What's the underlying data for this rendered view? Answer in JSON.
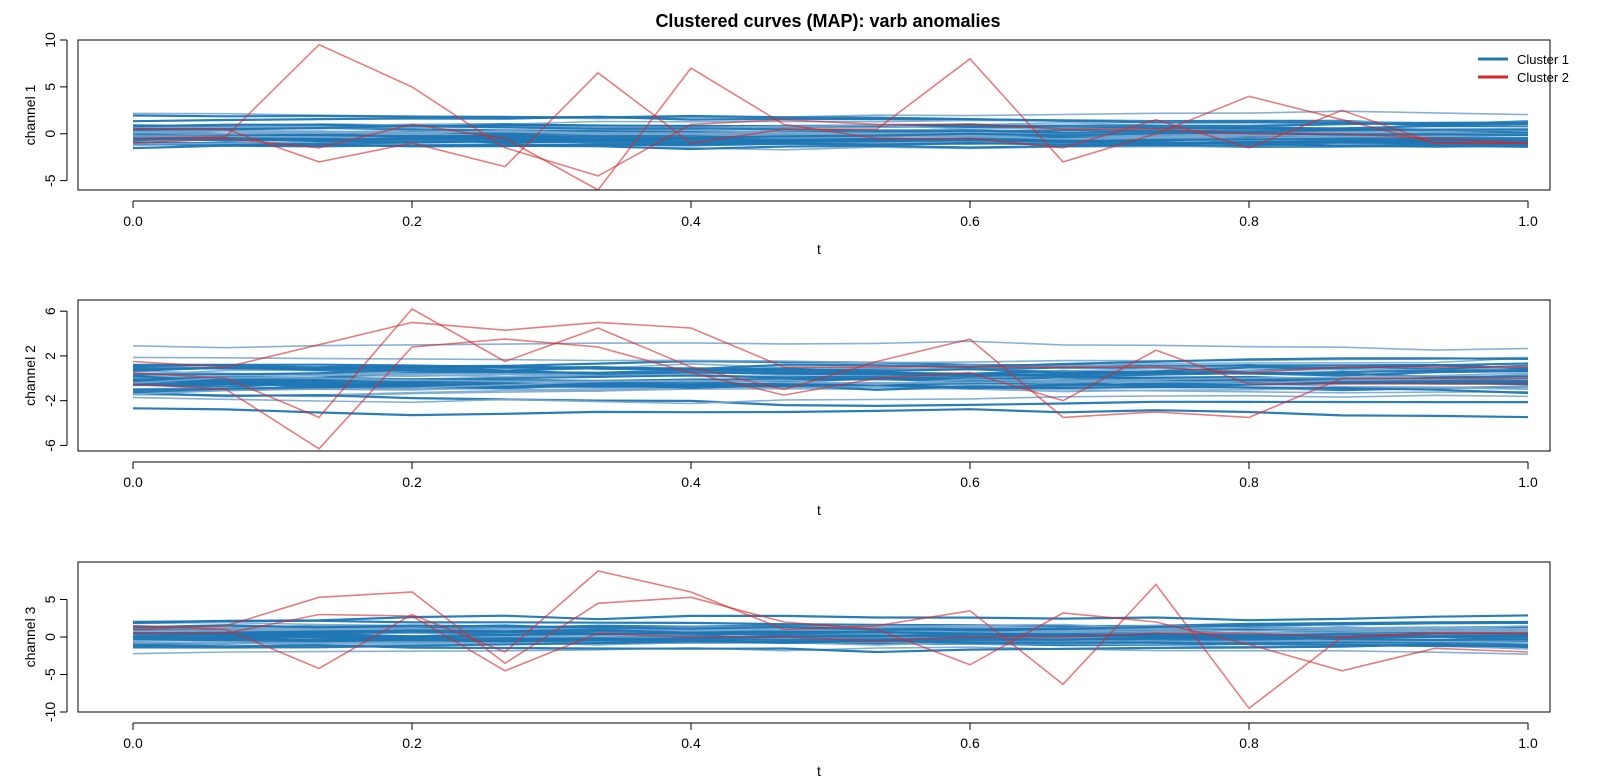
{
  "title": "Clustered curves (MAP): varb anomalies",
  "colors": {
    "cluster1": "#1f77b4",
    "cluster2": "#d62728"
  },
  "legend": {
    "placement": "top-right",
    "entries": [
      {
        "label": "Cluster 1",
        "color": "#1f77b4"
      },
      {
        "label": "Cluster 2",
        "color": "#d62728"
      }
    ]
  },
  "chart_data": [
    {
      "type": "line",
      "xlabel": "t",
      "ylabel": "channel 1",
      "xlim": [
        0,
        1
      ],
      "ylim": [
        -6,
        10
      ],
      "xticks": [
        "0.0",
        "0.2",
        "0.4",
        "0.6",
        "0.8",
        "1.0"
      ],
      "yticks": [
        "-5",
        "0",
        "5",
        "10"
      ],
      "x": [
        0,
        0.0667,
        0.1333,
        0.2,
        0.2667,
        0.3333,
        0.4,
        0.4667,
        0.5333,
        0.6,
        0.6667,
        0.7333,
        0.8,
        0.8667,
        0.9333,
        1.0
      ],
      "cluster1_band": {
        "center": 0.0,
        "spread": 1.7,
        "curves": 40
      },
      "series": [
        {
          "name": "Cluster 2",
          "values": [
            -0.5,
            -0.3,
            9.5,
            5.0,
            -1.5,
            -4.5,
            1.0,
            1.5,
            1.0,
            1.0,
            0.5,
            0.5,
            0.0,
            0.0,
            -0.5,
            -1.0
          ]
        },
        {
          "name": "Cluster 2",
          "values": [
            0.5,
            0.5,
            -3.0,
            -1.0,
            -3.5,
            6.5,
            -1.0,
            0.5,
            0.5,
            8.0,
            -3.0,
            0.0,
            4.0,
            1.5,
            -1.0,
            -1.0
          ]
        },
        {
          "name": "Cluster 2",
          "values": [
            -1.0,
            -0.5,
            -1.5,
            1.0,
            -0.5,
            -6.0,
            7.0,
            1.0,
            -0.5,
            -0.5,
            -1.5,
            1.5,
            -1.5,
            2.5,
            -1.0,
            -1.0
          ]
        }
      ]
    },
    {
      "type": "line",
      "xlabel": "t",
      "ylabel": "channel 2",
      "xlim": [
        0,
        1
      ],
      "ylim": [
        -6.5,
        7
      ],
      "xticks": [
        "0.0",
        "0.2",
        "0.4",
        "0.6",
        "0.8",
        "1.0"
      ],
      "yticks": [
        "-6",
        "-2",
        "2",
        "6"
      ],
      "x": [
        0,
        0.0667,
        0.1333,
        0.2,
        0.2667,
        0.3333,
        0.4,
        0.4667,
        0.5333,
        0.6,
        0.6667,
        0.7333,
        0.8,
        0.8667,
        0.9333,
        1.0
      ],
      "cluster1_band": {
        "center": 0.0,
        "spread": 2.0,
        "curves": 40
      },
      "series": [
        {
          "name": "Cluster 2",
          "values": [
            1.5,
            1.0,
            3.0,
            5.0,
            4.3,
            5.0,
            4.5,
            1.0,
            1.0,
            1.0,
            1.0,
            1.0,
            0.5,
            1.0,
            1.0,
            1.0
          ]
        },
        {
          "name": "Cluster 2",
          "values": [
            0.5,
            0.0,
            -3.5,
            6.2,
            1.5,
            4.5,
            1.0,
            -1.0,
            1.5,
            3.5,
            -3.5,
            -3.0,
            -3.5,
            0.0,
            0.0,
            0.0
          ]
        },
        {
          "name": "Cluster 2",
          "values": [
            -0.5,
            -1.0,
            -6.3,
            2.8,
            3.5,
            2.8,
            0.5,
            -1.5,
            0.0,
            0.5,
            -2.0,
            2.5,
            -0.5,
            -0.5,
            -0.5,
            -0.5
          ]
        }
      ]
    },
    {
      "type": "line",
      "xlabel": "t",
      "ylabel": "channel 3",
      "xlim": [
        0,
        1
      ],
      "ylim": [
        -10,
        10
      ],
      "xticks": [
        "0.0",
        "0.2",
        "0.4",
        "0.6",
        "0.8",
        "1.0"
      ],
      "yticks": [
        "-10",
        "-5",
        "0",
        "5"
      ],
      "x": [
        0,
        0.0667,
        0.1333,
        0.2,
        0.2667,
        0.3333,
        0.4,
        0.4667,
        0.5333,
        0.6,
        0.6667,
        0.7333,
        0.8,
        0.8667,
        0.9333,
        1.0
      ],
      "cluster1_band": {
        "center": 0.0,
        "spread": 2.3,
        "curves": 40
      },
      "series": [
        {
          "name": "Cluster 2",
          "values": [
            1.0,
            1.5,
            5.3,
            6.0,
            -3.5,
            4.5,
            5.3,
            2.0,
            1.0,
            -3.7,
            3.2,
            2.0,
            -1.0,
            -4.5,
            -1.5,
            -2.0
          ]
        },
        {
          "name": "Cluster 2",
          "values": [
            1.5,
            1.0,
            -4.2,
            3.0,
            -2.0,
            8.8,
            6.0,
            1.0,
            1.5,
            3.5,
            -6.3,
            7.0,
            -9.5,
            0.0,
            0.5,
            0.5
          ]
        },
        {
          "name": "Cluster 2",
          "values": [
            0.5,
            0.5,
            3.0,
            2.8,
            -4.5,
            0.5,
            0.0,
            0.0,
            -0.5,
            0.0,
            0.0,
            0.5,
            0.5,
            0.0,
            0.5,
            0.5
          ]
        }
      ]
    }
  ]
}
